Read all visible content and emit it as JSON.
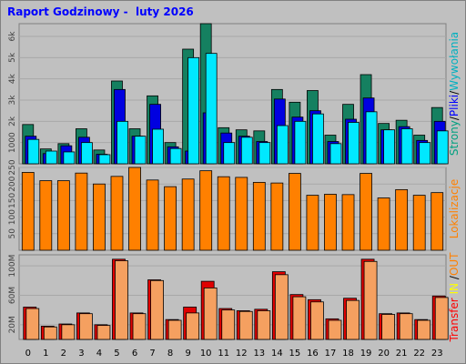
{
  "title": "Raport Godzinowy -  luty 2026",
  "chart_data": [
    {
      "type": "bar",
      "categories": [
        "0",
        "1",
        "2",
        "3",
        "4",
        "5",
        "6",
        "7",
        "8",
        "9",
        "10",
        "11",
        "12",
        "13",
        "14",
        "15",
        "16",
        "17",
        "18",
        "19",
        "20",
        "21",
        "22",
        "23"
      ],
      "yticks": [
        1000,
        2000,
        3000,
        4000,
        5000,
        6000
      ],
      "ytick_labels": [
        "1000",
        "2k",
        "3k",
        "4k",
        "5k",
        "6k"
      ],
      "ylim": [
        0,
        6600
      ],
      "side_label": [
        {
          "text": "Strony",
          "color": "#00a080"
        },
        {
          "text": "/",
          "color": "#000000"
        },
        {
          "text": "Pliki",
          "color": "#0000ff"
        },
        {
          "text": "/",
          "color": "#000000"
        },
        {
          "text": "Wywołania",
          "color": "#00b0c0"
        }
      ],
      "series": [
        {
          "name": "Strony",
          "color": "#158060",
          "values": [
            1850,
            700,
            950,
            1650,
            650,
            3900,
            1650,
            3200,
            1000,
            5400,
            6600,
            1700,
            1600,
            1550,
            3500,
            2900,
            3450,
            1350,
            2800,
            4200,
            1900,
            2050,
            1350,
            2650
          ]
        },
        {
          "name": "Pliki",
          "color": "#0000e0",
          "values": [
            1300,
            480,
            850,
            1250,
            450,
            3500,
            1300,
            2800,
            800,
            600,
            2400,
            1450,
            1300,
            1050,
            3050,
            2200,
            2500,
            1050,
            2100,
            3100,
            1600,
            1750,
            1100,
            2000
          ]
        },
        {
          "name": "Wywołania",
          "color": "#00e8ff",
          "values": [
            1150,
            600,
            560,
            1000,
            430,
            2000,
            1300,
            1630,
            720,
            5000,
            5200,
            1000,
            1250,
            1000,
            1800,
            2000,
            2350,
            950,
            1950,
            2450,
            1600,
            1650,
            1000,
            1550
          ]
        }
      ]
    },
    {
      "type": "bar",
      "categories": [
        "0",
        "1",
        "2",
        "3",
        "4",
        "5",
        "6",
        "7",
        "8",
        "9",
        "10",
        "11",
        "12",
        "13",
        "14",
        "15",
        "16",
        "17",
        "18",
        "19",
        "20",
        "21",
        "22",
        "23"
      ],
      "yticks": [
        50,
        100,
        150,
        200,
        250
      ],
      "ytick_labels": [
        "50",
        "100",
        "150",
        "200",
        "250"
      ],
      "ylim": [
        0,
        250
      ],
      "side_label": [
        {
          "text": "Lokalizacje",
          "color": "#ff8000"
        }
      ],
      "series": [
        {
          "name": "Lokalizacje",
          "color": "#ff8000",
          "values": [
            235,
            210,
            210,
            233,
            200,
            223,
            250,
            212,
            192,
            215,
            240,
            222,
            220,
            205,
            203,
            232,
            166,
            169,
            168,
            232,
            158,
            183,
            166,
            174
          ]
        }
      ]
    },
    {
      "type": "bar",
      "categories": [
        "0",
        "1",
        "2",
        "3",
        "4",
        "5",
        "6",
        "7",
        "8",
        "9",
        "10",
        "11",
        "12",
        "13",
        "14",
        "15",
        "16",
        "17",
        "18",
        "19",
        "20",
        "21",
        "22",
        "23"
      ],
      "yticks": [
        20,
        60,
        100
      ],
      "ytick_labels": [
        "20M",
        "60M",
        "100M"
      ],
      "ylim": [
        0,
        115
      ],
      "side_label": [
        {
          "text": "Transfer",
          "color": "#ff0000"
        },
        {
          "text": " IN ",
          "color": "#ffff00"
        },
        {
          "text": "/",
          "color": "#000000"
        },
        {
          "text": "OUT",
          "color": "#ff8000"
        }
      ],
      "series": [
        {
          "name": "Transfer",
          "color": "#e00000",
          "values": [
            44,
            18,
            21,
            36,
            20,
            109,
            36,
            81,
            27,
            44,
            79,
            42,
            39,
            41,
            92,
            61,
            54,
            28,
            56,
            109,
            35,
            36,
            27,
            59
          ]
        },
        {
          "name": "OUT",
          "color": "#f5a060",
          "values": [
            42,
            17,
            20,
            35,
            19,
            107,
            35,
            80,
            26,
            36,
            70,
            40,
            38,
            39,
            88,
            58,
            51,
            26,
            53,
            106,
            34,
            35,
            26,
            57
          ]
        }
      ]
    }
  ]
}
